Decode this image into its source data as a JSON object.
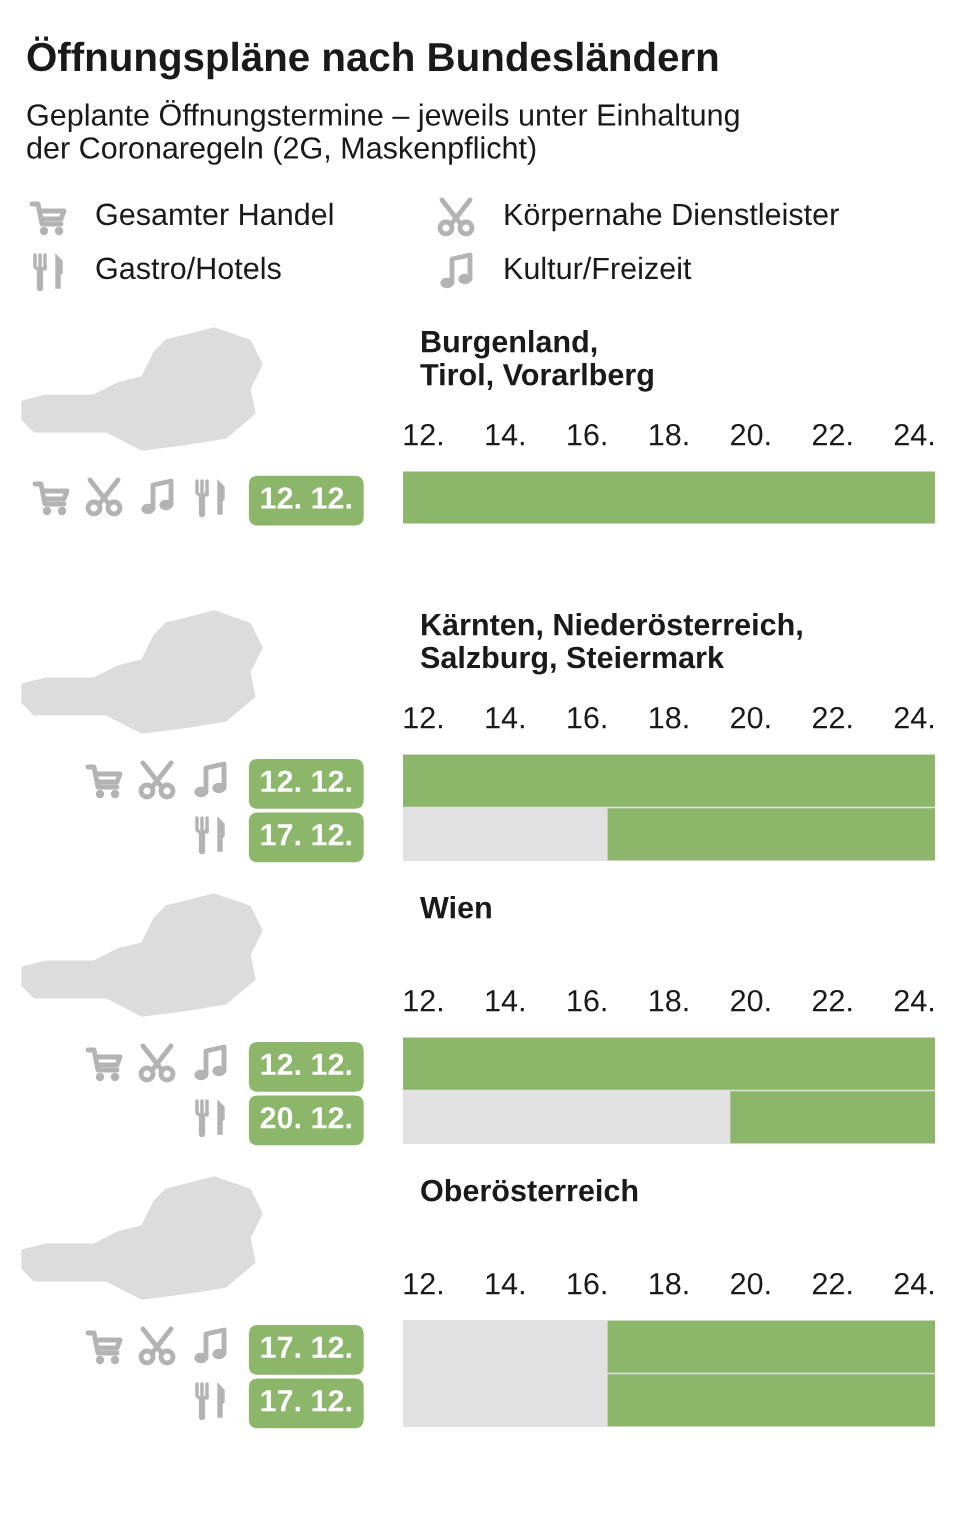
{
  "chart_data": [
    {
      "type": "other",
      "title": "Öffnungspläne nach Bundesländern",
      "subtitle": "Geplante Öffnungstermine – jeweils unter Einhaltung\nder Coronaregeln (2G, Maskenpflicht)",
      "annotations": [
        "Gesamter Handel",
        "Körpernahe Dienstleister",
        "Gastro/Hotels",
        "Kultur/Freizeit"
      ]
    },
    {
      "type": "bar",
      "orientation": "horizontal",
      "title": "Burgenland,\nTirol, Vorarlberg",
      "categories": [
        "12. 12."
      ],
      "base": [
        11.5
      ],
      "values": [
        13
      ],
      "color": "#8cb76a",
      "xlim": [
        11.5,
        24.5
      ],
      "xticks": [
        {
          "value": 12,
          "label": "12."
        },
        {
          "value": 14,
          "label": "14."
        },
        {
          "value": 16,
          "label": "16."
        },
        {
          "value": 18,
          "label": "18."
        },
        {
          "value": 20,
          "label": "20."
        },
        {
          "value": 22,
          "label": "22."
        },
        {
          "value": 24,
          "label": "24."
        }
      ]
    },
    {
      "type": "bar",
      "orientation": "horizontal",
      "title": "Kärnten, Niederösterreich,\nSalzburg, Steiermark",
      "categories": [
        "12. 12.",
        "17. 12."
      ],
      "base": [
        11.5,
        16.5
      ],
      "values": [
        13,
        8
      ],
      "color": "#8cb76a",
      "xlim": [
        11.5,
        24.5
      ],
      "xticks": [
        {
          "value": 12,
          "label": "12."
        },
        {
          "value": 14,
          "label": "14."
        },
        {
          "value": 16,
          "label": "16."
        },
        {
          "value": 18,
          "label": "18."
        },
        {
          "value": 20,
          "label": "20."
        },
        {
          "value": 22,
          "label": "22."
        },
        {
          "value": 24,
          "label": "24."
        }
      ]
    },
    {
      "type": "bar",
      "orientation": "horizontal",
      "title": "Wien",
      "categories": [
        "12. 12.",
        "20. 12."
      ],
      "base": [
        11.5,
        19.5
      ],
      "values": [
        13,
        5
      ],
      "color": "#8cb76a",
      "xlim": [
        11.5,
        24.5
      ],
      "xticks": [
        {
          "value": 12,
          "label": "12."
        },
        {
          "value": 14,
          "label": "14."
        },
        {
          "value": 16,
          "label": "16."
        },
        {
          "value": 18,
          "label": "18."
        },
        {
          "value": 20,
          "label": "20."
        },
        {
          "value": 22,
          "label": "22."
        },
        {
          "value": 24,
          "label": "24."
        }
      ]
    },
    {
      "type": "bar",
      "orientation": "horizontal",
      "title": "Oberösterreich",
      "categories": [
        "17. 12.",
        "17. 12."
      ],
      "base": [
        16.5,
        16.5
      ],
      "values": [
        8,
        8
      ],
      "color": "#8cb76a",
      "xlim": [
        11.5,
        24.5
      ],
      "xticks": [
        {
          "value": 12,
          "label": "12."
        },
        {
          "value": 14,
          "label": "14."
        },
        {
          "value": 16,
          "label": "16."
        },
        {
          "value": 18,
          "label": "18."
        },
        {
          "value": 20,
          "label": "20."
        },
        {
          "value": 22,
          "label": "22."
        },
        {
          "value": 24,
          "label": "24."
        }
      ]
    }
  ]
}
